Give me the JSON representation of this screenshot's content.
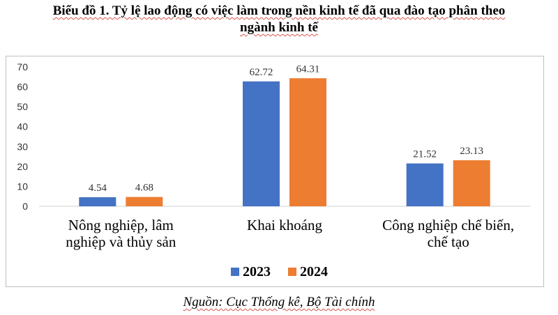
{
  "title_line1": "Biểu đồ 1. Tỷ lệ lao động có việc làm trong nền kinh tế đã qua đào tạo phân theo",
  "title_line2": "ngành kinh tế",
  "source": "Nguồn: Cục Thống kê, Bộ Tài chính",
  "chart_data": {
    "type": "bar",
    "title": "Biểu đồ 1. Tỷ lệ lao động có việc làm trong nền kinh tế đã qua đào tạo phân theo ngành kinh tế",
    "categories": [
      [
        "Nông nghiệp, lâm",
        "nghiệp và thủy sản"
      ],
      [
        "Khai khoáng"
      ],
      [
        "Công nghiệp chế biến,",
        "chế tạo"
      ]
    ],
    "series": [
      {
        "name": "2023",
        "values": [
          4.54,
          62.72,
          21.52
        ],
        "color": "#4472C4"
      },
      {
        "name": "2024",
        "values": [
          4.68,
          64.31,
          23.13
        ],
        "color": "#ED7D31"
      }
    ],
    "data_labels": [
      [
        "4.54",
        "62.72",
        "21.52"
      ],
      [
        "4.68",
        "64.31",
        "23.13"
      ]
    ],
    "ylim": [
      0,
      70
    ],
    "yticks": [
      "0",
      "10",
      "20",
      "30",
      "40",
      "50",
      "60",
      "70"
    ],
    "xlabel": "",
    "ylabel": "",
    "grid": false,
    "legend": "bottom"
  }
}
